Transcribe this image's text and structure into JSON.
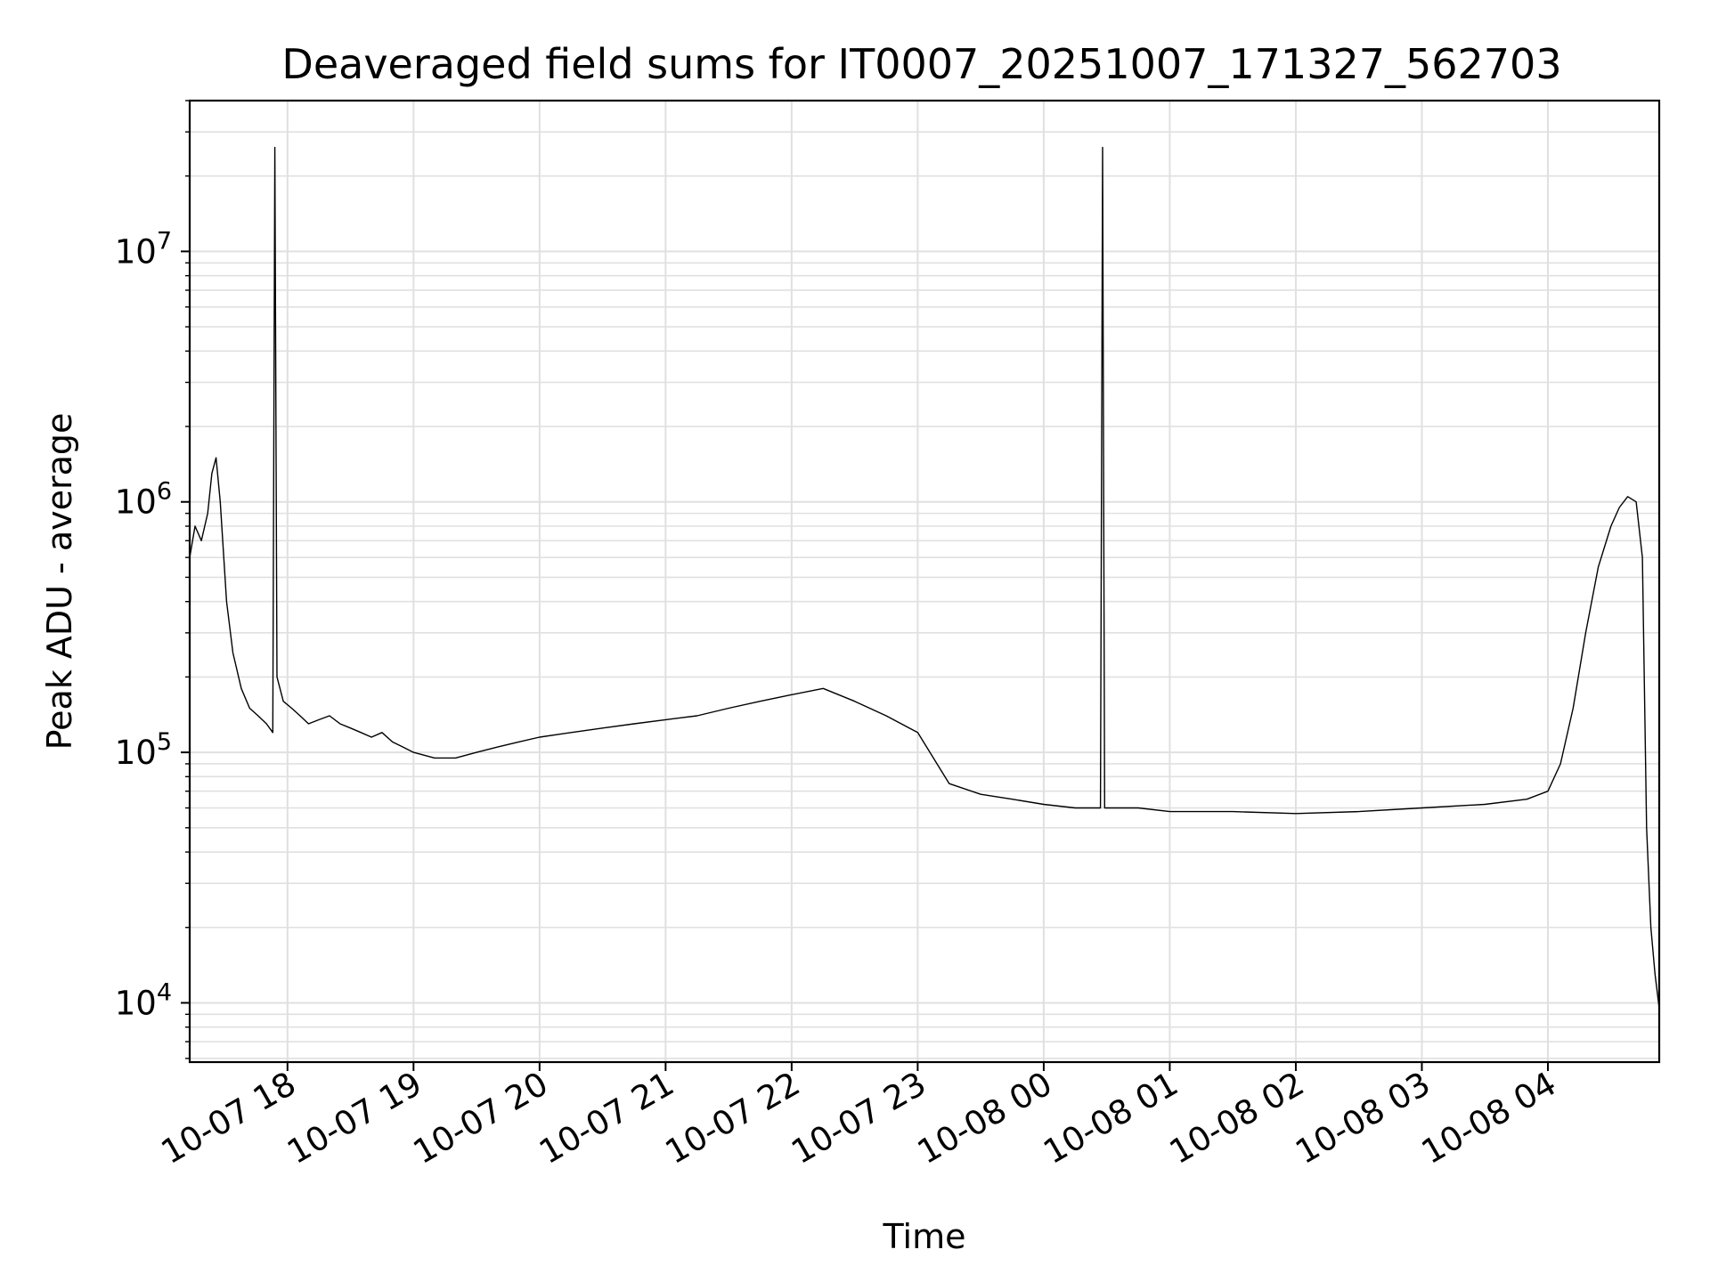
{
  "chart_data": {
    "type": "line",
    "title": "Deaveraged field sums for IT0007_20251007_171327_562703",
    "xlabel": "Time",
    "ylabel": "Peak ADU - average",
    "yscale": "log",
    "xlim": [
      "2025-10-07T17:13:27",
      "2025-10-08T04:53:00"
    ],
    "ylim": [
      5800,
      40000000
    ],
    "grid": true,
    "line_color": "#000000",
    "grid_color": "#e0e0e0",
    "x_ticks": [
      {
        "value": "2025-10-07T18:00:00",
        "label": "10-07 18"
      },
      {
        "value": "2025-10-07T19:00:00",
        "label": "10-07 19"
      },
      {
        "value": "2025-10-07T20:00:00",
        "label": "10-07 20"
      },
      {
        "value": "2025-10-07T21:00:00",
        "label": "10-07 21"
      },
      {
        "value": "2025-10-07T22:00:00",
        "label": "10-07 22"
      },
      {
        "value": "2025-10-07T23:00:00",
        "label": "10-07 23"
      },
      {
        "value": "2025-10-08T00:00:00",
        "label": "10-08 00"
      },
      {
        "value": "2025-10-08T01:00:00",
        "label": "10-08 01"
      },
      {
        "value": "2025-10-08T02:00:00",
        "label": "10-08 02"
      },
      {
        "value": "2025-10-08T03:00:00",
        "label": "10-08 03"
      },
      {
        "value": "2025-10-08T04:00:00",
        "label": "10-08 04"
      }
    ],
    "y_ticks": [
      {
        "value": 10000,
        "base": "10",
        "exp": "4"
      },
      {
        "value": 100000,
        "base": "10",
        "exp": "5"
      },
      {
        "value": 1000000,
        "base": "10",
        "exp": "6"
      },
      {
        "value": 10000000,
        "base": "10",
        "exp": "7"
      }
    ],
    "series": [
      {
        "values_note_free": true,
        "x": [
          "2025-10-07T17:13:27",
          "2025-10-07T17:16:00",
          "2025-10-07T17:19:00",
          "2025-10-07T17:22:00",
          "2025-10-07T17:24:00",
          "2025-10-07T17:26:00",
          "2025-10-07T17:28:00",
          "2025-10-07T17:31:00",
          "2025-10-07T17:34:00",
          "2025-10-07T17:38:00",
          "2025-10-07T17:42:00",
          "2025-10-07T17:46:00",
          "2025-10-07T17:50:00",
          "2025-10-07T17:53:00",
          "2025-10-07T17:54:00",
          "2025-10-07T17:55:00",
          "2025-10-07T17:58:00",
          "2025-10-07T18:02:00",
          "2025-10-07T18:06:00",
          "2025-10-07T18:10:00",
          "2025-10-07T18:15:00",
          "2025-10-07T18:20:00",
          "2025-10-07T18:25:00",
          "2025-10-07T18:30:00",
          "2025-10-07T18:35:00",
          "2025-10-07T18:40:00",
          "2025-10-07T18:45:00",
          "2025-10-07T18:50:00",
          "2025-10-07T18:55:00",
          "2025-10-07T19:00:00",
          "2025-10-07T19:10:00",
          "2025-10-07T19:20:00",
          "2025-10-07T19:30:00",
          "2025-10-07T19:40:00",
          "2025-10-07T19:50:00",
          "2025-10-07T20:00:00",
          "2025-10-07T20:15:00",
          "2025-10-07T20:30:00",
          "2025-10-07T20:45:00",
          "2025-10-07T21:00:00",
          "2025-10-07T21:15:00",
          "2025-10-07T21:30:00",
          "2025-10-07T21:45:00",
          "2025-10-07T22:00:00",
          "2025-10-07T22:15:00",
          "2025-10-07T22:30:00",
          "2025-10-07T22:45:00",
          "2025-10-07T23:00:00",
          "2025-10-07T23:15:00",
          "2025-10-07T23:30:00",
          "2025-10-07T23:45:00",
          "2025-10-08T00:00:00",
          "2025-10-08T00:15:00",
          "2025-10-08T00:27:00",
          "2025-10-08T00:28:00",
          "2025-10-08T00:29:00",
          "2025-10-08T00:45:00",
          "2025-10-08T01:00:00",
          "2025-10-08T01:30:00",
          "2025-10-08T02:00:00",
          "2025-10-08T02:30:00",
          "2025-10-08T03:00:00",
          "2025-10-08T03:30:00",
          "2025-10-08T03:50:00",
          "2025-10-08T04:00:00",
          "2025-10-08T04:06:00",
          "2025-10-08T04:12:00",
          "2025-10-08T04:18:00",
          "2025-10-08T04:24:00",
          "2025-10-08T04:30:00",
          "2025-10-08T04:34:00",
          "2025-10-08T04:38:00",
          "2025-10-08T04:42:00",
          "2025-10-08T04:45:00",
          "2025-10-08T04:47:00",
          "2025-10-08T04:49:00",
          "2025-10-08T04:51:00",
          "2025-10-08T04:53:00"
        ],
        "y": [
          600000,
          800000,
          700000,
          900000,
          1300000,
          1500000,
          1000000,
          400000,
          250000,
          180000,
          150000,
          140000,
          130000,
          120000,
          26000000,
          200000,
          160000,
          150000,
          140000,
          130000,
          135000,
          140000,
          130000,
          125000,
          120000,
          115000,
          120000,
          110000,
          105000,
          100000,
          95000,
          95000,
          100000,
          105000,
          110000,
          115000,
          120000,
          125000,
          130000,
          135000,
          140000,
          150000,
          160000,
          170000,
          180000,
          160000,
          140000,
          120000,
          75000,
          68000,
          65000,
          62000,
          60000,
          60000,
          26000000,
          60000,
          60000,
          58000,
          58000,
          57000,
          58000,
          60000,
          62000,
          65000,
          70000,
          90000,
          150000,
          300000,
          550000,
          800000,
          950000,
          1050000,
          1000000,
          600000,
          50000,
          20000,
          13000,
          9500
        ]
      }
    ]
  }
}
